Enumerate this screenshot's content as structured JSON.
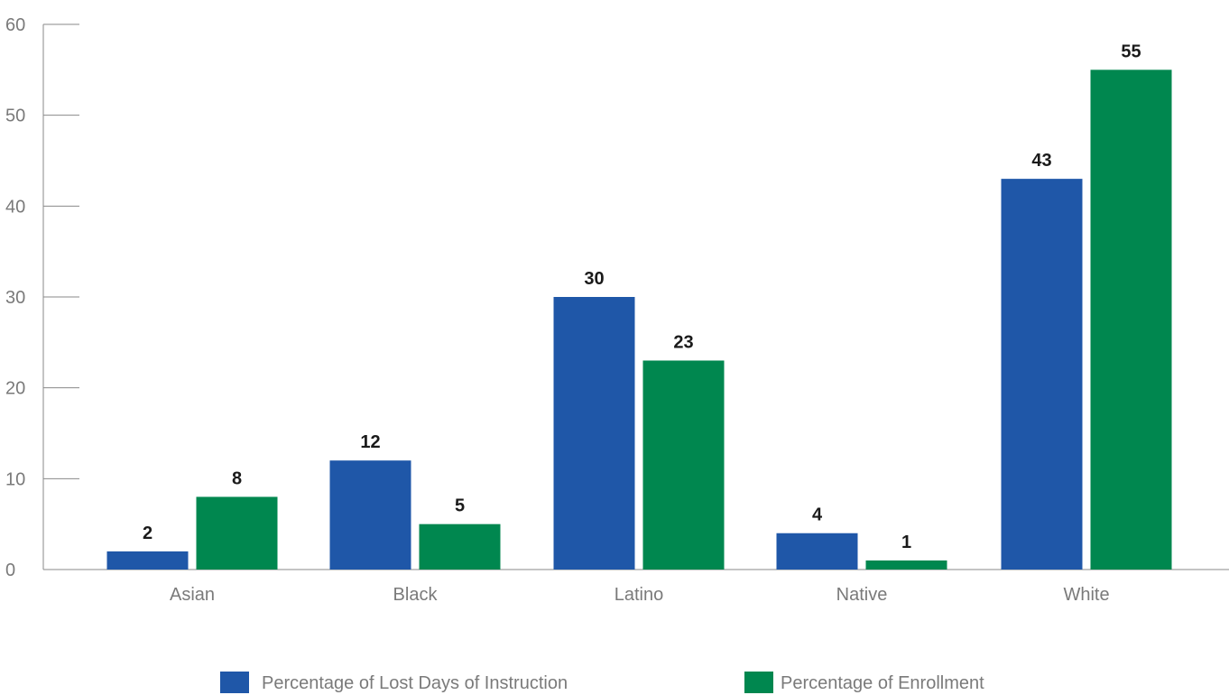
{
  "chart_data": {
    "type": "bar",
    "categories": [
      "Asian",
      "Black",
      "Latino",
      "Native",
      "White"
    ],
    "series": [
      {
        "name": "Percentage of Lost Days of Instruction",
        "values": [
          2,
          12,
          30,
          4,
          43
        ],
        "labels": [
          "2",
          "12",
          "30",
          "4",
          "43"
        ],
        "color": "#1f57a8"
      },
      {
        "name": "Percentage of Enrollment",
        "values": [
          8,
          5,
          23,
          1,
          55
        ],
        "labels": [
          "8",
          "5",
          "23",
          "1",
          "55"
        ],
        "color": "#00874f"
      }
    ],
    "yticks": [
      "0",
      "10",
      "20",
      "30",
      "40",
      "50",
      "60"
    ],
    "ylim": [
      0,
      60
    ],
    "grid": false,
    "legend_position": "bottom"
  }
}
